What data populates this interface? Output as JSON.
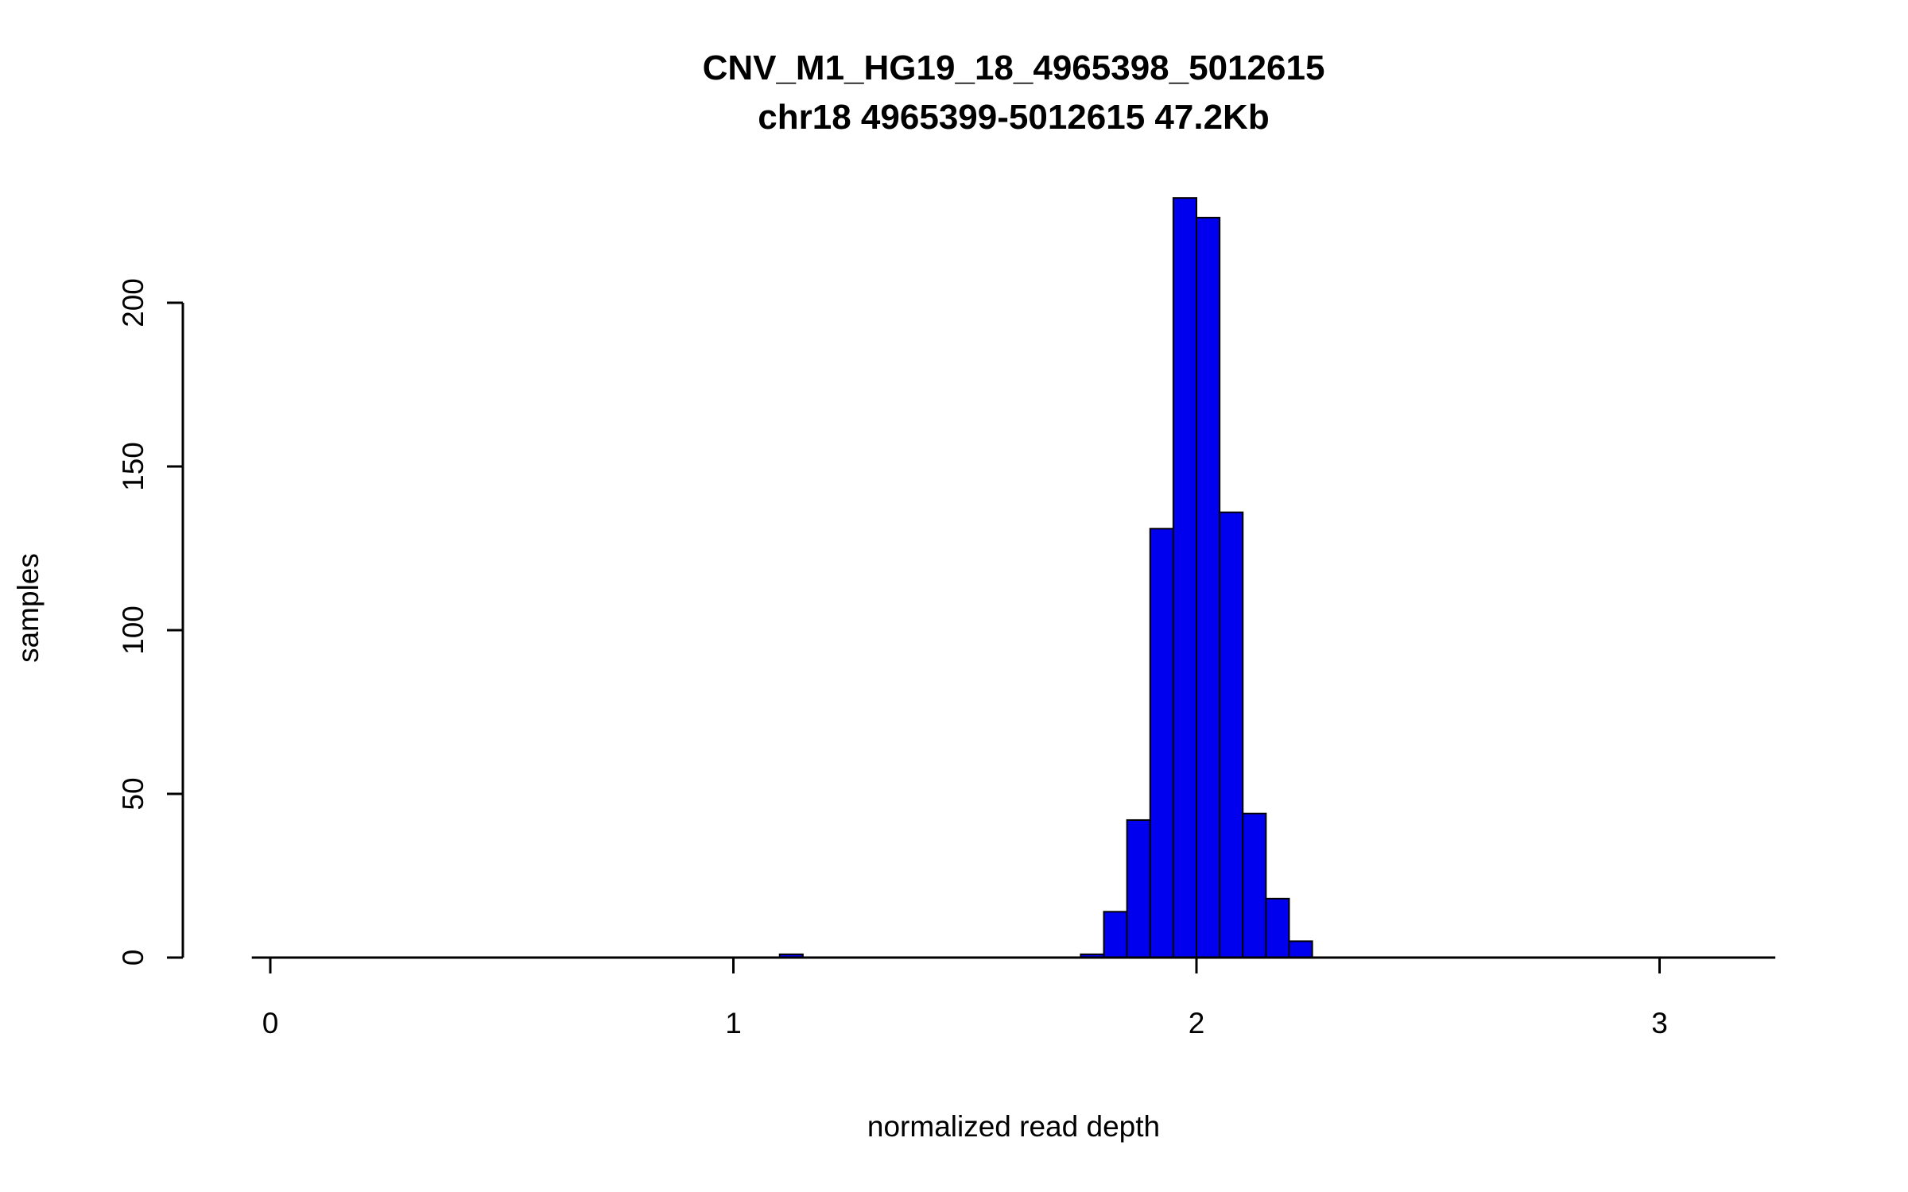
{
  "chart_data": {
    "type": "bar",
    "subtype": "histogram",
    "title": "CNV_M1_HG19_18_4965398_5012615",
    "subtitle": "chr18 4965399-5012615 47.2Kb",
    "xlabel": "normalized read depth",
    "ylabel": "samples",
    "x_ticks": [
      0,
      1,
      2,
      3
    ],
    "y_ticks": [
      0,
      50,
      100,
      150,
      200
    ],
    "xlim": [
      -0.04,
      3.25
    ],
    "ylim": [
      0,
      235
    ],
    "grid": "off",
    "legend": "none",
    "bin_width": 0.05,
    "bins": [
      {
        "x0": 1.1,
        "x1": 1.15,
        "count": 1
      },
      {
        "x0": 1.75,
        "x1": 1.8,
        "count": 1
      },
      {
        "x0": 1.8,
        "x1": 1.85,
        "count": 14
      },
      {
        "x0": 1.85,
        "x1": 1.9,
        "count": 42
      },
      {
        "x0": 1.9,
        "x1": 1.95,
        "count": 131
      },
      {
        "x0": 1.95,
        "x1": 2.0,
        "count": 232
      },
      {
        "x0": 2.0,
        "x1": 2.05,
        "count": 226
      },
      {
        "x0": 2.05,
        "x1": 2.1,
        "count": 136
      },
      {
        "x0": 2.1,
        "x1": 2.15,
        "count": 44
      },
      {
        "x0": 2.15,
        "x1": 2.2,
        "count": 18
      },
      {
        "x0": 2.2,
        "x1": 2.25,
        "count": 5
      }
    ],
    "colors": {
      "bar_fill": "#0000EE",
      "bar_stroke": "#000000",
      "axis": "#000000",
      "text": "#000000"
    }
  }
}
